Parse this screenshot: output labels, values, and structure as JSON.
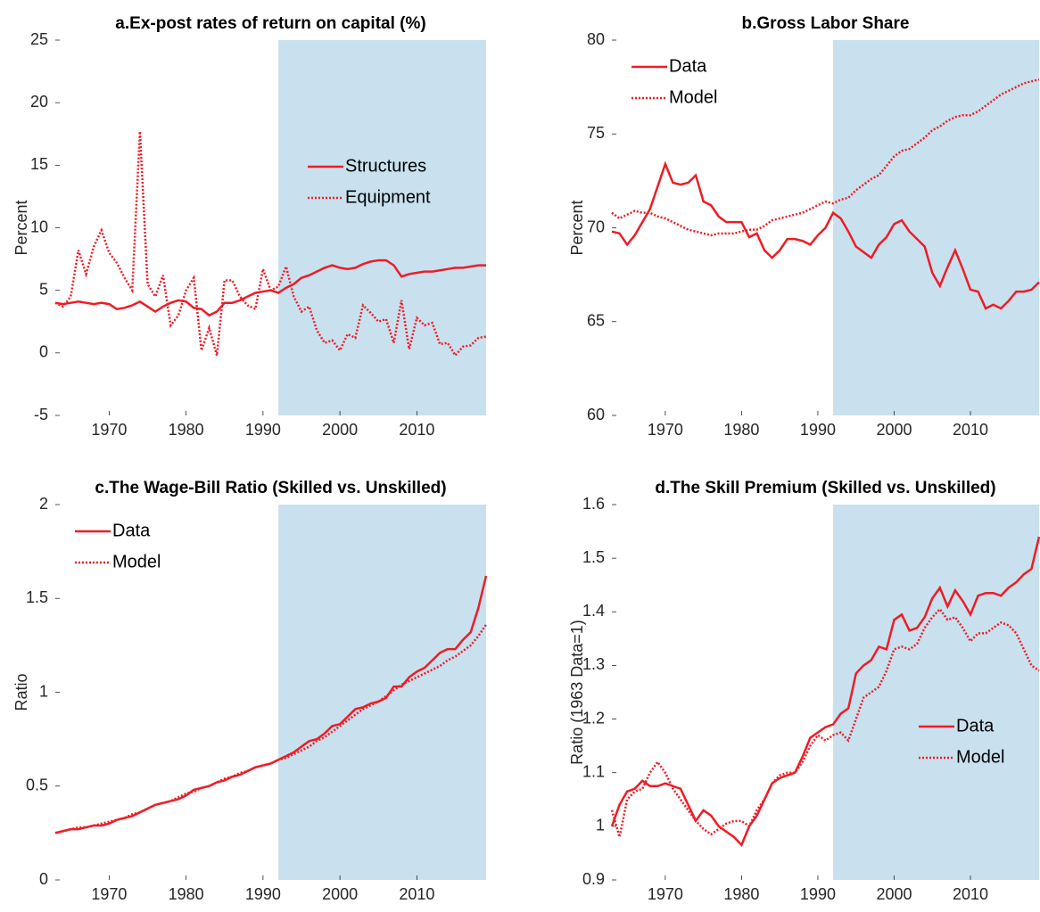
{
  "chart_data": [
    {
      "type": "line",
      "title": "a.Ex-post rates of return on capital (%)",
      "y_label": "Percent",
      "x": [
        1963,
        1964,
        1965,
        1966,
        1967,
        1968,
        1969,
        1970,
        1971,
        1972,
        1973,
        1974,
        1975,
        1976,
        1977,
        1978,
        1979,
        1980,
        1981,
        1982,
        1983,
        1984,
        1985,
        1986,
        1987,
        1988,
        1989,
        1990,
        1991,
        1992,
        1993,
        1994,
        1995,
        1996,
        1997,
        1998,
        1999,
        2000,
        2001,
        2002,
        2003,
        2004,
        2005,
        2006,
        2007,
        2008,
        2009,
        2010,
        2011,
        2012,
        2013,
        2014,
        2015,
        2016,
        2017,
        2018,
        2019
      ],
      "series": [
        {
          "name": "Structures",
          "color": "#ee1c25",
          "dash": "solid",
          "values": [
            4.0,
            3.9,
            4.0,
            4.1,
            4.0,
            3.9,
            4.0,
            3.9,
            3.5,
            3.6,
            3.8,
            4.1,
            3.7,
            3.3,
            3.7,
            4.0,
            4.2,
            4.1,
            3.6,
            3.5,
            3.0,
            3.3,
            4.0,
            4.0,
            4.2,
            4.5,
            4.8,
            4.9,
            5.0,
            4.8,
            5.2,
            5.5,
            6.0,
            6.2,
            6.5,
            6.8,
            7.0,
            6.8,
            6.7,
            6.8,
            7.1,
            7.3,
            7.4,
            7.4,
            7.0,
            6.1,
            6.3,
            6.4,
            6.5,
            6.5,
            6.6,
            6.7,
            6.8,
            6.8,
            6.9,
            7.0,
            7.0
          ]
        },
        {
          "name": "Equipment",
          "color": "#ee1c25",
          "dash": "dotted",
          "values": [
            4.0,
            3.7,
            4.5,
            8.2,
            6.3,
            8.5,
            9.8,
            8.0,
            7.2,
            6.0,
            5.0,
            17.7,
            5.5,
            4.5,
            6.2,
            2.2,
            3.0,
            5.0,
            6.0,
            0.2,
            2.0,
            -0.2,
            5.8,
            5.8,
            4.5,
            3.8,
            3.5,
            6.7,
            5.0,
            5.3,
            6.9,
            4.5,
            3.3,
            3.7,
            1.8,
            0.8,
            1.0,
            0.2,
            1.5,
            1.2,
            3.8,
            3.2,
            2.5,
            2.7,
            0.8,
            4.2,
            0.3,
            2.8,
            2.2,
            2.4,
            0.7,
            0.8,
            -0.2,
            0.5,
            0.6,
            1.2,
            1.3
          ]
        }
      ],
      "xlim": [
        1963,
        2019
      ],
      "xticks": [
        1970,
        1980,
        1990,
        2000,
        2010
      ],
      "ylim": [
        -5,
        25
      ],
      "yticks": [
        -5,
        0,
        5,
        10,
        15,
        20,
        25
      ],
      "shaded_x": [
        1992,
        2019
      ],
      "shade_color": "#c9e1ef",
      "legend": "east"
    },
    {
      "type": "line",
      "title": "b.Gross Labor Share",
      "y_label": "Percent",
      "x": [
        1963,
        1964,
        1965,
        1966,
        1967,
        1968,
        1969,
        1970,
        1971,
        1972,
        1973,
        1974,
        1975,
        1976,
        1977,
        1978,
        1979,
        1980,
        1981,
        1982,
        1983,
        1984,
        1985,
        1986,
        1987,
        1988,
        1989,
        1990,
        1991,
        1992,
        1993,
        1994,
        1995,
        1996,
        1997,
        1998,
        1999,
        2000,
        2001,
        2002,
        2003,
        2004,
        2005,
        2006,
        2007,
        2008,
        2009,
        2010,
        2011,
        2012,
        2013,
        2014,
        2015,
        2016,
        2017,
        2018,
        2019
      ],
      "series": [
        {
          "name": "Data",
          "color": "#ee1c25",
          "dash": "solid",
          "values": [
            69.8,
            69.7,
            69.1,
            69.6,
            70.3,
            71.0,
            72.2,
            73.4,
            72.4,
            72.3,
            72.4,
            72.8,
            71.4,
            71.2,
            70.6,
            70.3,
            70.3,
            70.3,
            69.5,
            69.7,
            68.8,
            68.4,
            68.8,
            69.4,
            69.4,
            69.3,
            69.1,
            69.6,
            70.0,
            70.8,
            70.5,
            69.8,
            69.0,
            68.7,
            68.4,
            69.1,
            69.5,
            70.2,
            70.4,
            69.8,
            69.4,
            69.0,
            67.6,
            66.9,
            67.9,
            68.8,
            67.8,
            66.7,
            66.6,
            65.7,
            65.9,
            65.7,
            66.1,
            66.6,
            66.6,
            66.7,
            67.1
          ]
        },
        {
          "name": "Model",
          "color": "#ee1c25",
          "dash": "dotted",
          "values": [
            70.8,
            70.5,
            70.7,
            70.9,
            70.8,
            70.8,
            70.6,
            70.5,
            70.3,
            70.1,
            69.9,
            69.8,
            69.7,
            69.6,
            69.7,
            69.7,
            69.7,
            69.8,
            69.9,
            69.9,
            70.1,
            70.4,
            70.5,
            70.6,
            70.7,
            70.8,
            71.0,
            71.2,
            71.4,
            71.3,
            71.5,
            71.6,
            72.0,
            72.3,
            72.6,
            72.8,
            73.3,
            73.8,
            74.1,
            74.2,
            74.5,
            74.8,
            75.2,
            75.4,
            75.7,
            75.9,
            76.0,
            76.0,
            76.2,
            76.5,
            76.8,
            77.1,
            77.3,
            77.5,
            77.7,
            77.8,
            77.9
          ]
        }
      ],
      "xlim": [
        1963,
        2019
      ],
      "xticks": [
        1970,
        1980,
        1990,
        2000,
        2010
      ],
      "ylim": [
        60,
        80
      ],
      "yticks": [
        60,
        65,
        70,
        75,
        80
      ],
      "shaded_x": [
        1992,
        2019
      ],
      "shade_color": "#c9e1ef",
      "legend": "upper left"
    },
    {
      "type": "line",
      "title": "c.The Wage-Bill Ratio (Skilled vs. Unskilled)",
      "y_label": "Ratio",
      "x": [
        1963,
        1964,
        1965,
        1966,
        1967,
        1968,
        1969,
        1970,
        1971,
        1972,
        1973,
        1974,
        1975,
        1976,
        1977,
        1978,
        1979,
        1980,
        1981,
        1982,
        1983,
        1984,
        1985,
        1986,
        1987,
        1988,
        1989,
        1990,
        1991,
        1992,
        1993,
        1994,
        1995,
        1996,
        1997,
        1998,
        1999,
        2000,
        2001,
        2002,
        2003,
        2004,
        2005,
        2006,
        2007,
        2008,
        2009,
        2010,
        2011,
        2012,
        2013,
        2014,
        2015,
        2016,
        2017,
        2018,
        2019
      ],
      "series": [
        {
          "name": "Data",
          "color": "#ee1c25",
          "dash": "solid",
          "values": [
            0.25,
            0.26,
            0.27,
            0.27,
            0.28,
            0.29,
            0.29,
            0.3,
            0.32,
            0.33,
            0.34,
            0.36,
            0.38,
            0.4,
            0.41,
            0.42,
            0.43,
            0.45,
            0.48,
            0.49,
            0.5,
            0.52,
            0.53,
            0.55,
            0.56,
            0.58,
            0.6,
            0.61,
            0.62,
            0.64,
            0.66,
            0.68,
            0.71,
            0.74,
            0.75,
            0.78,
            0.82,
            0.83,
            0.87,
            0.91,
            0.92,
            0.94,
            0.95,
            0.97,
            1.03,
            1.03,
            1.08,
            1.11,
            1.13,
            1.17,
            1.21,
            1.23,
            1.23,
            1.28,
            1.32,
            1.45,
            1.62
          ]
        },
        {
          "name": "Model",
          "color": "#ee1c25",
          "dash": "dotted",
          "values": [
            0.25,
            0.26,
            0.27,
            0.28,
            0.28,
            0.29,
            0.3,
            0.31,
            0.32,
            0.33,
            0.35,
            0.36,
            0.38,
            0.4,
            0.41,
            0.42,
            0.44,
            0.46,
            0.47,
            0.49,
            0.5,
            0.52,
            0.54,
            0.55,
            0.57,
            0.58,
            0.6,
            0.61,
            0.62,
            0.64,
            0.65,
            0.67,
            0.69,
            0.71,
            0.74,
            0.76,
            0.79,
            0.82,
            0.85,
            0.88,
            0.91,
            0.93,
            0.95,
            0.98,
            1.01,
            1.04,
            1.06,
            1.08,
            1.1,
            1.12,
            1.14,
            1.17,
            1.19,
            1.22,
            1.25,
            1.3,
            1.36
          ]
        }
      ],
      "xlim": [
        1963,
        2019
      ],
      "xticks": [
        1970,
        1980,
        1990,
        2000,
        2010
      ],
      "ylim": [
        0,
        2
      ],
      "yticks": [
        0,
        0.5,
        1,
        1.5,
        2
      ],
      "shaded_x": [
        1992,
        2019
      ],
      "shade_color": "#c9e1ef",
      "legend": "upper left"
    },
    {
      "type": "line",
      "title": "d.The Skill Premium (Skilled vs. Unskilled)",
      "y_label": "Ratio (1963 Data=1)",
      "x": [
        1963,
        1964,
        1965,
        1966,
        1967,
        1968,
        1969,
        1970,
        1971,
        1972,
        1973,
        1974,
        1975,
        1976,
        1977,
        1978,
        1979,
        1980,
        1981,
        1982,
        1983,
        1984,
        1985,
        1986,
        1987,
        1988,
        1989,
        1990,
        1991,
        1992,
        1993,
        1994,
        1995,
        1996,
        1997,
        1998,
        1999,
        2000,
        2001,
        2002,
        2003,
        2004,
        2005,
        2006,
        2007,
        2008,
        2009,
        2010,
        2011,
        2012,
        2013,
        2014,
        2015,
        2016,
        2017,
        2018,
        2019
      ],
      "series": [
        {
          "name": "Data",
          "color": "#ee1c25",
          "dash": "solid",
          "values": [
            1.0,
            1.04,
            1.065,
            1.07,
            1.085,
            1.075,
            1.075,
            1.08,
            1.075,
            1.07,
            1.04,
            1.01,
            1.03,
            1.02,
            1.0,
            0.99,
            0.98,
            0.965,
            1.0,
            1.02,
            1.05,
            1.08,
            1.09,
            1.095,
            1.1,
            1.13,
            1.165,
            1.175,
            1.185,
            1.19,
            1.21,
            1.22,
            1.285,
            1.3,
            1.31,
            1.335,
            1.33,
            1.385,
            1.395,
            1.365,
            1.37,
            1.39,
            1.425,
            1.445,
            1.41,
            1.44,
            1.42,
            1.395,
            1.43,
            1.435,
            1.435,
            1.43,
            1.445,
            1.455,
            1.47,
            1.48,
            1.54
          ]
        },
        {
          "name": "Model",
          "color": "#ee1c25",
          "dash": "dotted",
          "values": [
            1.03,
            0.98,
            1.05,
            1.065,
            1.07,
            1.1,
            1.12,
            1.1,
            1.07,
            1.05,
            1.03,
            1.01,
            0.995,
            0.985,
            0.995,
            1.005,
            1.01,
            1.01,
            1.0,
            1.03,
            1.05,
            1.08,
            1.095,
            1.1,
            1.1,
            1.12,
            1.15,
            1.17,
            1.16,
            1.17,
            1.175,
            1.16,
            1.2,
            1.24,
            1.25,
            1.26,
            1.29,
            1.33,
            1.335,
            1.33,
            1.34,
            1.37,
            1.39,
            1.405,
            1.385,
            1.39,
            1.37,
            1.345,
            1.36,
            1.36,
            1.37,
            1.38,
            1.375,
            1.36,
            1.33,
            1.3,
            1.29
          ]
        }
      ],
      "xlim": [
        1963,
        2019
      ],
      "xticks": [
        1970,
        1980,
        1990,
        2000,
        2010
      ],
      "ylim": [
        0.9,
        1.6
      ],
      "yticks": [
        0.9,
        1,
        1.1,
        1.2,
        1.3,
        1.4,
        1.5,
        1.6
      ],
      "shaded_x": [
        1992,
        2019
      ],
      "shade_color": "#c9e1ef",
      "legend": "lower right"
    }
  ]
}
